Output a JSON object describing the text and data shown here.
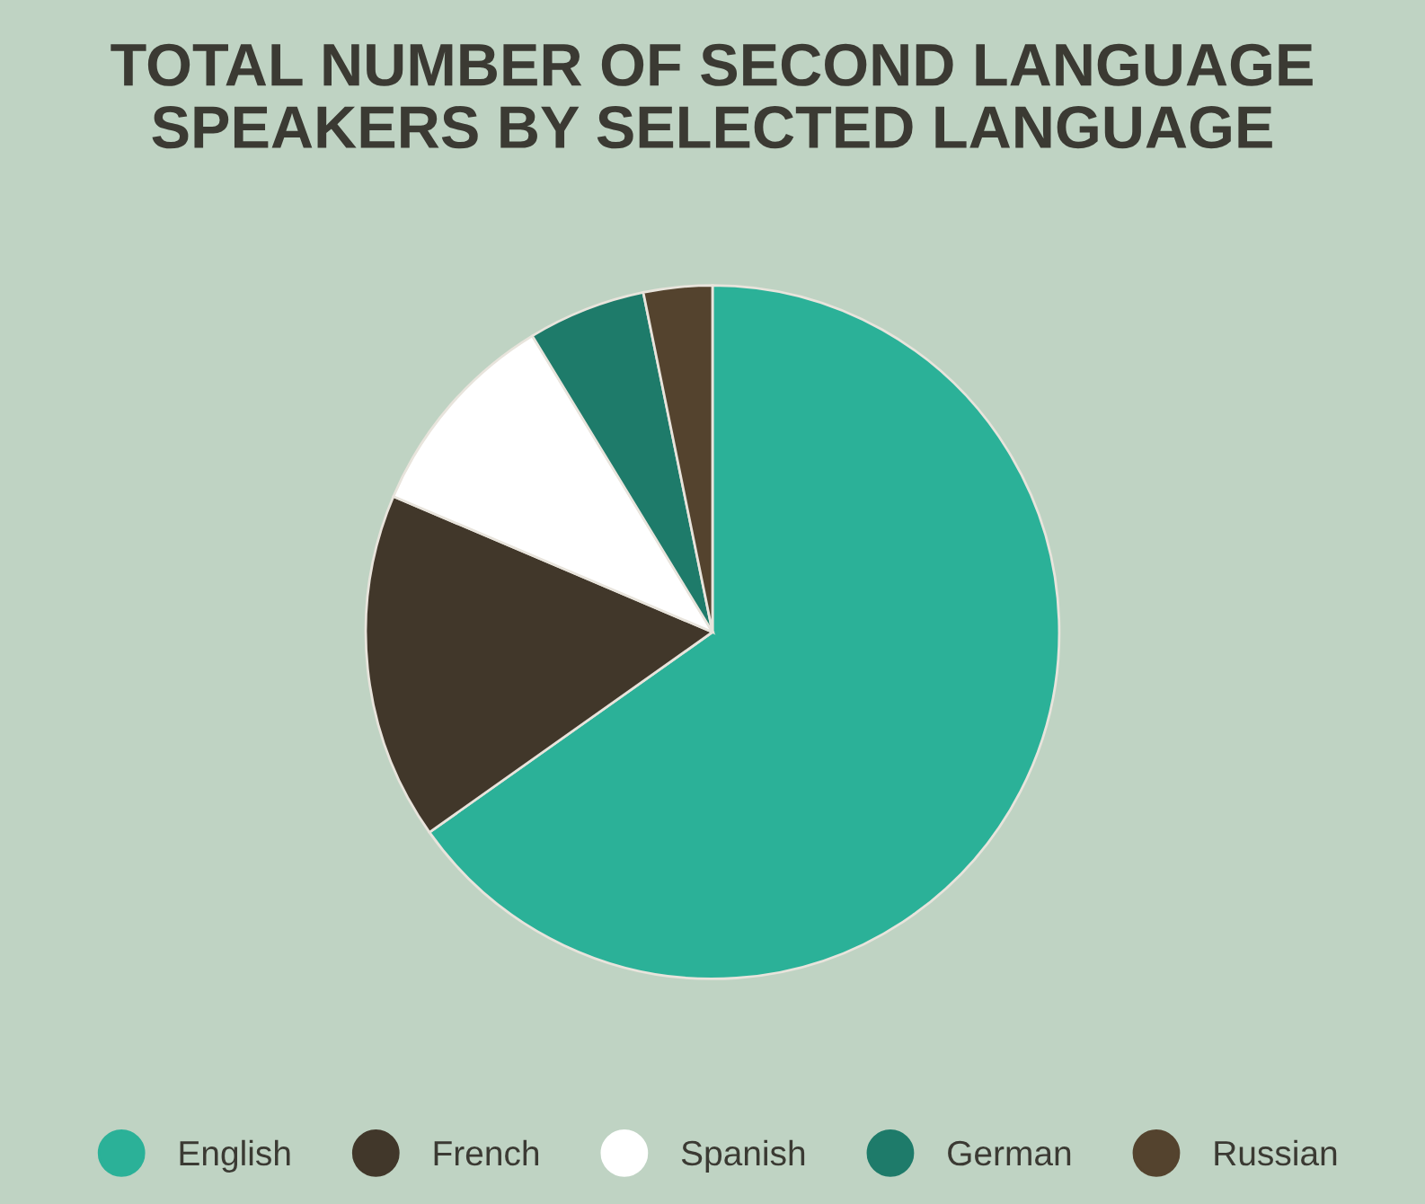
{
  "chart_data": {
    "type": "pie",
    "title": "TOTAL NUMBER OF SECOND LANGUAGE\nSPEAKERS BY SELECTED LANGUAGE",
    "categories": [
      "English",
      "French",
      "Spanish",
      "German",
      "Russian"
    ],
    "values": [
      65.2,
      16.2,
      9.9,
      5.5,
      3.2
    ],
    "colors": [
      "#2bb198",
      "#41372a",
      "#ffffff",
      "#1e7b6a",
      "#54432e"
    ],
    "legend": "bottom"
  }
}
